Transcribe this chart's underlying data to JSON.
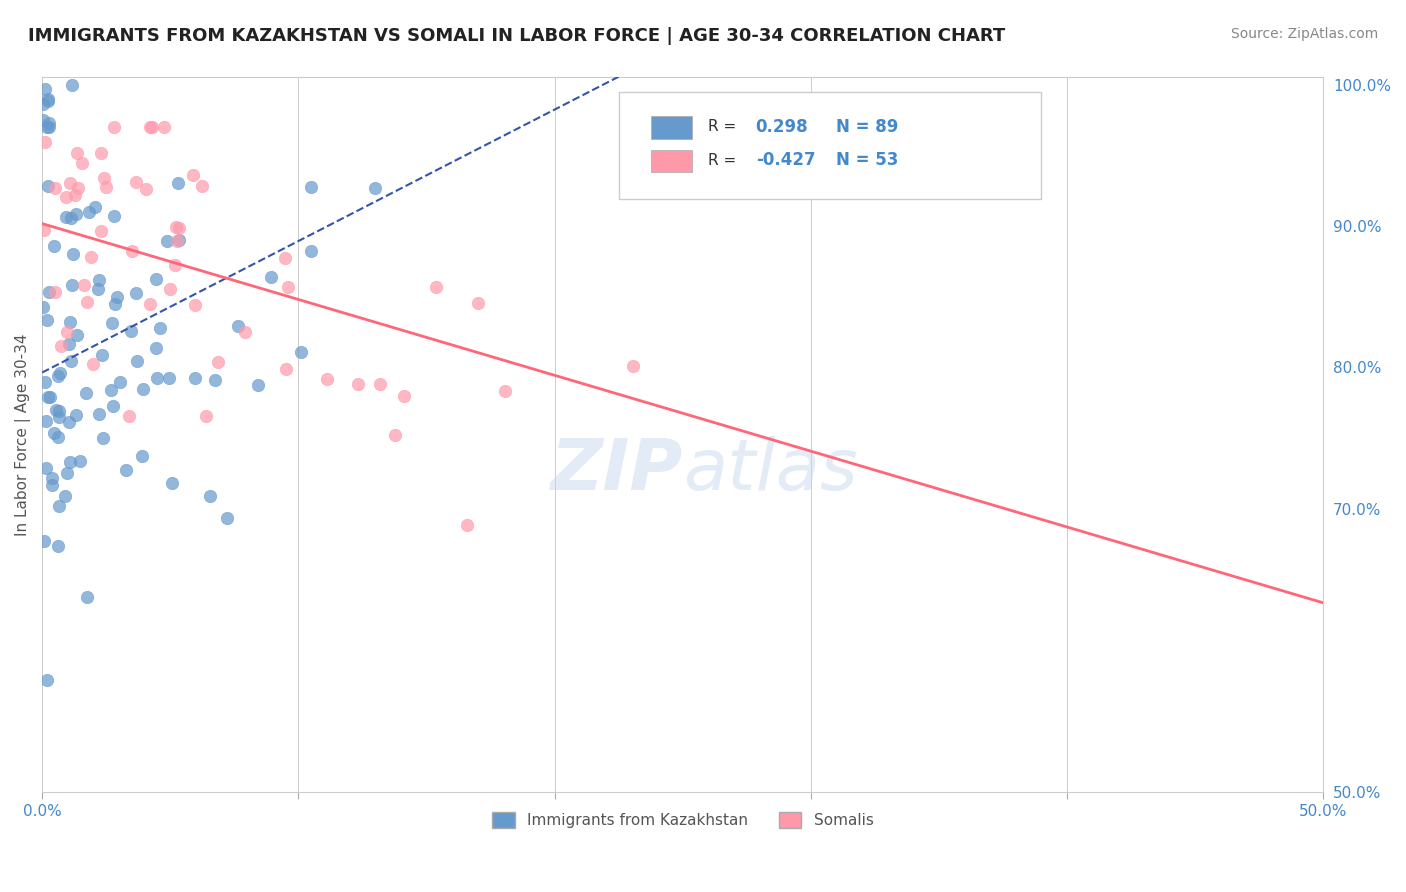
{
  "title": "IMMIGRANTS FROM KAZAKHSTAN VS SOMALI IN LABOR FORCE | AGE 30-34 CORRELATION CHART",
  "source": "Source: ZipAtlas.com",
  "legend_blue_label": "Immigrants from Kazakhstan",
  "legend_pink_label": "Somalis",
  "R_blue": 0.298,
  "N_blue": 89,
  "R_pink": -0.427,
  "N_pink": 53,
  "blue_color": "#6699CC",
  "pink_color": "#FF99AA",
  "blue_line_color": "#3355AA",
  "pink_line_color": "#FF6677",
  "xmin": 0.0,
  "xmax": 0.5,
  "ymin": 0.5,
  "ymax": 1.005,
  "ylabel": "In Labor Force | Age 30-34",
  "yticks": [
    0.5,
    0.7,
    0.8,
    0.9,
    1.0
  ],
  "ytick_labels": [
    "50.0%",
    "70.0%",
    "80.0%",
    "90.0%",
    "100.0%"
  ],
  "xtick_labels": [
    "0.0%",
    "50.0%"
  ],
  "watermark_zip": "ZIP",
  "watermark_atlas": "atlas"
}
